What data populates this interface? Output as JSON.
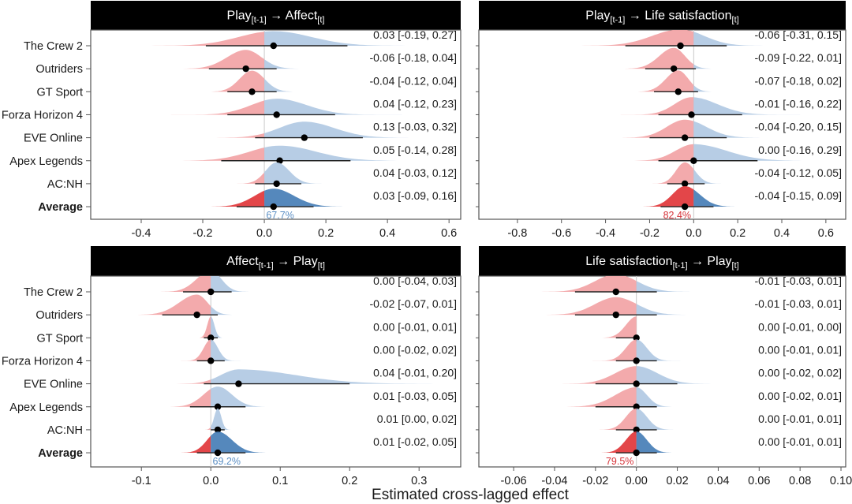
{
  "chart_data": {
    "type": "density-forest",
    "xlabel": "Estimated cross-lagged effect",
    "colors": {
      "negative_light": "#f2a5a8",
      "positive_light": "#b3cae4",
      "negative_average": "#e23c3f",
      "positive_average": "#4c82b8",
      "pct_negative": "#d6343a",
      "pct_positive": "#5b8fc4",
      "strip_bg": "#000000",
      "zero_line": "#c8c8c8"
    },
    "categories": [
      "The Crew 2",
      "Outriders",
      "GT Sport",
      "Forza Horizon 4",
      "EVE Online",
      "Apex Legends",
      "AC:NH",
      "Average"
    ],
    "panels": [
      {
        "id": "play-affect",
        "title_main1": "Play",
        "title_sub1": "[t-1]",
        "title_arrow": "→",
        "title_main2": "Affect",
        "title_sub2": "[t]",
        "xlim": [
          -0.564,
          0.638
        ],
        "ticks": [
          -0.4,
          -0.2,
          0.0,
          0.2,
          0.4,
          0.6
        ],
        "tick_labels": [
          "-0.4",
          "-0.2",
          "0.0",
          "0.2",
          "0.4",
          "0.6"
        ],
        "show_ylabels": true,
        "estimates": [
          {
            "game": "The Crew 2",
            "mean": 0.03,
            "lo": -0.19,
            "hi": 0.27,
            "label": "0.03 [-0.19, 0.27]"
          },
          {
            "game": "Outriders",
            "mean": -0.06,
            "lo": -0.18,
            "hi": 0.04,
            "label": "-0.06 [-0.18, 0.04]"
          },
          {
            "game": "GT Sport",
            "mean": -0.04,
            "lo": -0.12,
            "hi": 0.04,
            "label": "-0.04 [-0.12, 0.04]"
          },
          {
            "game": "Forza Horizon 4",
            "mean": 0.04,
            "lo": -0.12,
            "hi": 0.23,
            "label": "0.04 [-0.12, 0.23]"
          },
          {
            "game": "EVE Online",
            "mean": 0.13,
            "lo": -0.03,
            "hi": 0.32,
            "label": "0.13 [-0.03, 0.32]"
          },
          {
            "game": "Apex Legends",
            "mean": 0.05,
            "lo": -0.14,
            "hi": 0.28,
            "label": "0.05 [-0.14, 0.28]"
          },
          {
            "game": "AC:NH",
            "mean": 0.04,
            "lo": -0.03,
            "hi": 0.12,
            "label": "0.04 [-0.03, 0.12]"
          },
          {
            "game": "Average",
            "mean": 0.03,
            "lo": -0.09,
            "hi": 0.16,
            "label": "0.03 [-0.09, 0.16]"
          }
        ],
        "average_pct": "67.7%",
        "average_pct_side": "positive"
      },
      {
        "id": "play-life",
        "title_main1": "Play",
        "title_sub1": "[t-1]",
        "title_arrow": "→",
        "title_main2": "Life satisfaction",
        "title_sub2": "[t]",
        "xlim": [
          -0.975,
          0.69
        ],
        "ticks": [
          -0.8,
          -0.6,
          -0.4,
          -0.2,
          0.0,
          0.2,
          0.4,
          0.6
        ],
        "tick_labels": [
          "-0.8",
          "-0.6",
          "-0.4",
          "-0.2",
          "0.0",
          "0.2",
          "0.4",
          "0.6"
        ],
        "show_ylabels": false,
        "estimates": [
          {
            "game": "The Crew 2",
            "mean": -0.06,
            "lo": -0.31,
            "hi": 0.15,
            "label": "-0.06 [-0.31, 0.15]"
          },
          {
            "game": "Outriders",
            "mean": -0.09,
            "lo": -0.22,
            "hi": 0.01,
            "label": "-0.09 [-0.22, 0.01]"
          },
          {
            "game": "GT Sport",
            "mean": -0.07,
            "lo": -0.18,
            "hi": 0.02,
            "label": "-0.07 [-0.18, 0.02]"
          },
          {
            "game": "Forza Horizon 4",
            "mean": -0.01,
            "lo": -0.16,
            "hi": 0.22,
            "label": "-0.01 [-0.16, 0.22]"
          },
          {
            "game": "EVE Online",
            "mean": -0.04,
            "lo": -0.2,
            "hi": 0.15,
            "label": "-0.04 [-0.20, 0.15]"
          },
          {
            "game": "Apex Legends",
            "mean": 0.0,
            "lo": -0.16,
            "hi": 0.29,
            "label": "0.00 [-0.16, 0.29]"
          },
          {
            "game": "AC:NH",
            "mean": -0.04,
            "lo": -0.12,
            "hi": 0.05,
            "label": "-0.04 [-0.12, 0.05]"
          },
          {
            "game": "Average",
            "mean": -0.04,
            "lo": -0.15,
            "hi": 0.09,
            "label": "-0.04 [-0.15, 0.09]"
          }
        ],
        "average_pct": "82.4%",
        "average_pct_side": "negative"
      },
      {
        "id": "affect-play",
        "title_main1": "Affect",
        "title_sub1": "[t-1]",
        "title_arrow": "→",
        "title_main2": "Play",
        "title_sub2": "[t]",
        "xlim": [
          -0.173,
          0.36
        ],
        "ticks": [
          -0.1,
          0.0,
          0.1,
          0.2,
          0.3
        ],
        "tick_labels": [
          "-0.1",
          "0.0",
          "0.1",
          "0.2",
          "0.3"
        ],
        "show_ylabels": true,
        "estimates": [
          {
            "game": "The Crew 2",
            "mean": 0.0,
            "lo": -0.04,
            "hi": 0.03,
            "label": "0.00 [-0.04, 0.03]"
          },
          {
            "game": "Outriders",
            "mean": -0.02,
            "lo": -0.07,
            "hi": 0.01,
            "label": "-0.02 [-0.07, 0.01]"
          },
          {
            "game": "GT Sport",
            "mean": 0.0,
            "lo": -0.01,
            "hi": 0.01,
            "label": "0.00 [-0.01, 0.01]"
          },
          {
            "game": "Forza Horizon 4",
            "mean": 0.0,
            "lo": -0.02,
            "hi": 0.02,
            "label": "0.00 [-0.02, 0.02]"
          },
          {
            "game": "EVE Online",
            "mean": 0.04,
            "lo": -0.01,
            "hi": 0.2,
            "label": "0.04 [-0.01, 0.20]"
          },
          {
            "game": "Apex Legends",
            "mean": 0.01,
            "lo": -0.03,
            "hi": 0.05,
            "label": "0.01 [-0.03, 0.05]"
          },
          {
            "game": "AC:NH",
            "mean": 0.01,
            "lo": 0.0,
            "hi": 0.02,
            "label": "0.01 [0.00, 0.02]"
          },
          {
            "game": "Average",
            "mean": 0.01,
            "lo": -0.02,
            "hi": 0.05,
            "label": "0.01 [-0.02, 0.05]"
          }
        ],
        "average_pct": "69.2%",
        "average_pct_side": "positive"
      },
      {
        "id": "life-play",
        "title_main1": "Life satisfaction",
        "title_sub1": "[t-1]",
        "title_arrow": "→",
        "title_main2": "Play",
        "title_sub2": "[t]",
        "xlim": [
          -0.077,
          0.1023
        ],
        "ticks": [
          -0.06,
          -0.04,
          -0.02,
          0.0,
          0.02,
          0.04,
          0.06,
          0.08,
          0.1
        ],
        "tick_labels": [
          "-0.06",
          "-0.04",
          "-0.02",
          "0.00",
          "0.02",
          "0.04",
          "0.06",
          "0.08",
          "0.10"
        ],
        "show_ylabels": false,
        "estimates": [
          {
            "game": "The Crew 2",
            "mean": -0.01,
            "lo": -0.03,
            "hi": 0.01,
            "label": "-0.01 [-0.03, 0.01]"
          },
          {
            "game": "Outriders",
            "mean": -0.01,
            "lo": -0.03,
            "hi": 0.01,
            "label": "-0.01 [-0.03, 0.01]"
          },
          {
            "game": "GT Sport",
            "mean": 0.0,
            "lo": -0.01,
            "hi": 0.0,
            "label": "0.00 [-0.01, 0.00]"
          },
          {
            "game": "Forza Horizon 4",
            "mean": 0.0,
            "lo": -0.01,
            "hi": 0.01,
            "label": "0.00 [-0.01, 0.01]"
          },
          {
            "game": "EVE Online",
            "mean": 0.0,
            "lo": -0.02,
            "hi": 0.02,
            "label": "0.00 [-0.02, 0.02]"
          },
          {
            "game": "Apex Legends",
            "mean": 0.0,
            "lo": -0.02,
            "hi": 0.01,
            "label": "0.00 [-0.02, 0.01]"
          },
          {
            "game": "AC:NH",
            "mean": 0.0,
            "lo": -0.01,
            "hi": 0.01,
            "label": "0.00 [-0.01, 0.01]"
          },
          {
            "game": "Average",
            "mean": 0.0,
            "lo": -0.01,
            "hi": 0.01,
            "label": "0.00 [-0.01, 0.01]"
          }
        ],
        "average_pct": "79.5%",
        "average_pct_side": "negative"
      }
    ]
  }
}
